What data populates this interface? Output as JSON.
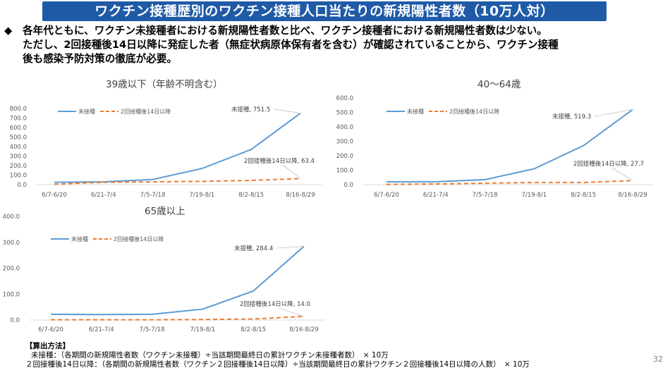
{
  "header": {
    "title": "ワクチン接種歴別のワクチン接種人口当たりの新規陽性者数（10万人対）"
  },
  "bullet": {
    "mark": "◆",
    "lines": [
      "各年代ともに、ワクチン未接種者における新規陽性者数と比べ、ワクチン接種者における新規陽性者数は少ない。",
      "ただし、2回接種後14日以降に発症した者（無症状病原体保有者を含む）が確認されていることから、ワクチン接種",
      "後も感染予防対策の徹底が必要。"
    ]
  },
  "colors": {
    "unvaccinated": "#5b9bd5",
    "vaccinated": "#ed7d31",
    "title_bg": "#1f5aa6"
  },
  "chart_data": [
    {
      "type": "line",
      "title": "39歳以下（年齢不明含む）",
      "categories": [
        "6/7-6/20",
        "6/21-7/4",
        "7/5-7/18",
        "7/19-8/1",
        "8/2-8/15",
        "8/16-8/29"
      ],
      "ylim": [
        0,
        800
      ],
      "yticks": [
        "0.0",
        "100.0",
        "200.0",
        "300.0",
        "400.0",
        "500.0",
        "600.0",
        "700.0",
        "800.0"
      ],
      "series": [
        {
          "name": "未接種",
          "values": [
            25,
            30,
            55,
            170,
            370,
            751.5
          ],
          "end_label": "未接種, 751.5"
        },
        {
          "name": "2回接種後14日以降",
          "values": [
            5,
            25,
            30,
            35,
            45,
            63.4
          ],
          "end_label": "2回接種後14日以降, 63.4"
        }
      ]
    },
    {
      "type": "line",
      "title": "40～64歳",
      "categories": [
        "6/7-6/20",
        "6/21-7/4",
        "7/5-7/18",
        "7/19-8/1",
        "8/2-8/15",
        "8/16-8/29"
      ],
      "ylim": [
        0,
        600
      ],
      "yticks": [
        "0.0",
        "100.0",
        "200.0",
        "300.0",
        "400.0",
        "500.0",
        "600.0"
      ],
      "series": [
        {
          "name": "未接種",
          "values": [
            20,
            20,
            35,
            110,
            270,
            519.3
          ],
          "end_label": "未接種, 519.3"
        },
        {
          "name": "2回接種後14日以降",
          "values": [
            2,
            5,
            10,
            15,
            15,
            27.7
          ],
          "end_label": "2回接種後14日以降, 27.7"
        }
      ]
    },
    {
      "type": "line",
      "title": "65歳以上",
      "categories": [
        "6/7-6/20",
        "6/21-7/4",
        "7/5-7/18",
        "7/19-8/1",
        "8/2-8/15",
        "8/16-8/29"
      ],
      "ylim": [
        0,
        400
      ],
      "yticks": [
        "0.0",
        "100.0",
        "200.0",
        "300.0",
        "400.0"
      ],
      "series": [
        {
          "name": "未接種",
          "values": [
            22,
            21,
            22,
            42,
            112,
            284.4
          ],
          "end_label": "未接種, 284.4"
        },
        {
          "name": "2回接種後14日以降",
          "values": [
            1,
            1,
            1,
            2,
            4,
            14.0
          ],
          "end_label": "2回接種後14日以降, 14.0"
        }
      ]
    }
  ],
  "method": {
    "heading": "【算出方法】",
    "line1": "未接種：（各期間の新規陽性者数（ワクチン未接種）÷当該期間最終日の累計ワクチン未接種者数）　× 10万",
    "line2": "２回接種後14日以降：（各期間の新規陽性者数（ワクチン２回接種後14日以降）÷当該期間最終日の累計ワクチン２回接種後14日以降の人数）　× 10万"
  },
  "page_number": "32"
}
